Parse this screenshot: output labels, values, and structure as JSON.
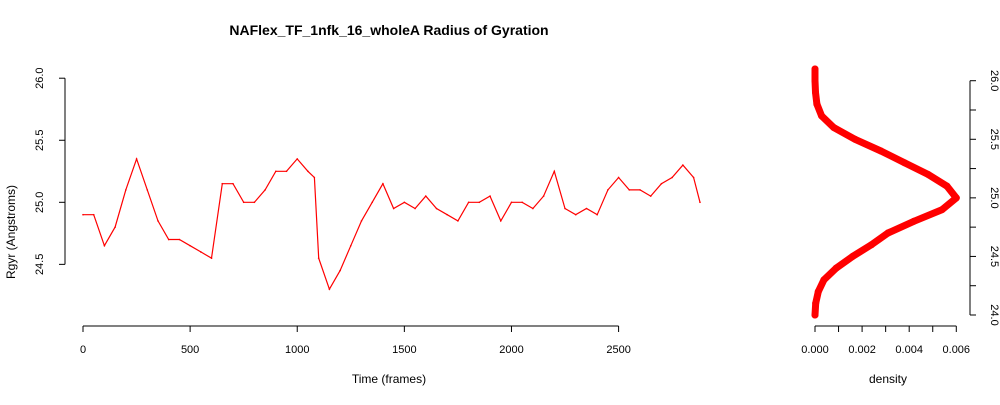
{
  "chart_data": [
    {
      "type": "line",
      "title": "NAFlex_TF_1nfk_16_wholeA Radius of Gyration",
      "xlabel": "Time (frames)",
      "ylabel": "Rgyr (Angstroms)",
      "xlim": [
        0,
        2880
      ],
      "ylim": [
        24.1,
        26.05
      ],
      "xticks": [
        0,
        500,
        1000,
        1500,
        2000,
        2500
      ],
      "yticks": [
        24.5,
        25.0,
        25.5,
        26.0
      ],
      "ytick_labels": [
        "24.5",
        "25.0",
        "25.5",
        "26.0"
      ],
      "series_color": "#ff0000",
      "x": [
        0,
        50,
        100,
        150,
        200,
        250,
        300,
        350,
        400,
        450,
        500,
        550,
        600,
        650,
        700,
        750,
        800,
        850,
        900,
        950,
        1000,
        1050,
        1080,
        1100,
        1150,
        1200,
        1250,
        1300,
        1350,
        1400,
        1450,
        1500,
        1550,
        1600,
        1650,
        1700,
        1750,
        1800,
        1850,
        1900,
        1950,
        2000,
        2050,
        2100,
        2150,
        2200,
        2250,
        2300,
        2350,
        2400,
        2450,
        2500,
        2550,
        2600,
        2650,
        2700,
        2750,
        2800,
        2850,
        2880
      ],
      "y": [
        24.9,
        24.9,
        24.65,
        24.8,
        25.1,
        25.35,
        25.1,
        24.85,
        24.7,
        24.7,
        24.65,
        24.6,
        24.55,
        25.15,
        25.15,
        25.0,
        25.0,
        25.1,
        25.25,
        25.25,
        25.35,
        25.25,
        25.2,
        24.55,
        24.3,
        24.45,
        24.65,
        24.85,
        25.0,
        25.15,
        24.95,
        25.0,
        24.95,
        25.05,
        24.95,
        24.9,
        24.85,
        25.0,
        25.0,
        25.05,
        24.85,
        25.0,
        25.0,
        24.95,
        25.05,
        25.25,
        24.95,
        24.9,
        24.95,
        24.9,
        25.1,
        25.2,
        25.1,
        25.1,
        25.05,
        25.15,
        25.2,
        25.3,
        25.2,
        25.0
      ]
    },
    {
      "type": "line",
      "xlabel": "density",
      "xlim": [
        0,
        0.0062
      ],
      "ylim": [
        24.0,
        26.1
      ],
      "xticks": [
        0.0,
        0.002,
        0.004,
        0.006
      ],
      "xtick_labels": [
        "0.000",
        "0.002",
        "0.004",
        "0.006"
      ],
      "yticks": [
        24.0,
        24.5,
        25.0,
        25.5,
        26.0
      ],
      "ytick_labels": [
        "24.0",
        "24.5",
        "25.0",
        "25.5",
        "26.0"
      ],
      "series_color": "#ff0000",
      "y": [
        24.0,
        24.1,
        24.2,
        24.3,
        24.4,
        24.5,
        24.6,
        24.7,
        24.8,
        24.9,
        25.0,
        25.1,
        25.2,
        25.3,
        25.4,
        25.5,
        25.6,
        25.7,
        25.8,
        25.9,
        26.0,
        26.1
      ],
      "x": [
        0.0,
        3e-05,
        0.00014,
        0.00038,
        0.0009,
        0.0016,
        0.0024,
        0.0031,
        0.0042,
        0.0054,
        0.006,
        0.0056,
        0.0048,
        0.0038,
        0.0028,
        0.0017,
        0.0008,
        0.00028,
        8e-05,
        2e-05,
        0.0,
        0.0
      ]
    }
  ]
}
